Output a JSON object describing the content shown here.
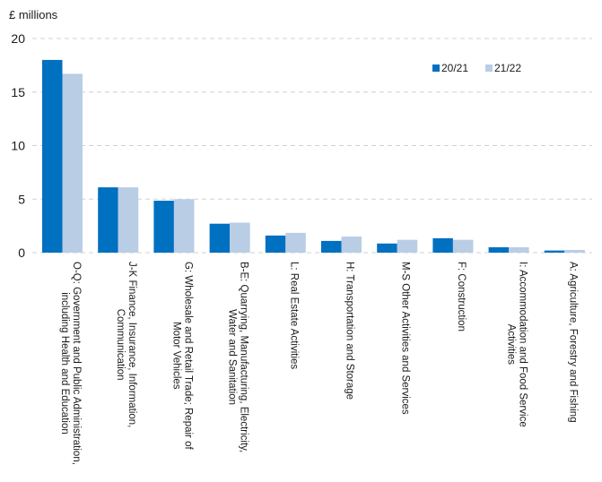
{
  "chart_data": {
    "type": "bar",
    "title": "",
    "ylabel": "£ millions",
    "xlabel": "",
    "ylim": [
      0,
      20
    ],
    "yticks": [
      "0",
      "5",
      "10",
      "15",
      "20"
    ],
    "grid": true,
    "legend_position": "top-right",
    "categories": [
      [
        "O-Q: Government and Public Administration,",
        "including Health and Education"
      ],
      [
        "J-K Finance, Insurance, Information,",
        "Communication"
      ],
      [
        "G: Wholesale and Retail Trade; Repair of",
        "Motor Vehicles"
      ],
      [
        "B-E: Quarrying, Manufacturing, Electricity,",
        "Water and Sanitation"
      ],
      [
        "L: Real Estate Activities"
      ],
      [
        "H: Transportation and Storage"
      ],
      [
        "M-S Other Activities and Services"
      ],
      [
        "F: Construction"
      ],
      [
        "I: Accommodation and Food Service",
        "Activities"
      ],
      [
        "A: Agriculture, Forestry and Fishing"
      ]
    ],
    "series": [
      {
        "name": "20/21",
        "color": "#0070c0",
        "values": [
          18.0,
          6.1,
          4.85,
          2.7,
          1.6,
          1.1,
          0.85,
          1.35,
          0.5,
          0.2
        ]
      },
      {
        "name": "21/22",
        "color": "#b9cde5",
        "values": [
          16.7,
          6.1,
          5.0,
          2.8,
          1.85,
          1.5,
          1.2,
          1.2,
          0.5,
          0.25
        ]
      }
    ]
  }
}
